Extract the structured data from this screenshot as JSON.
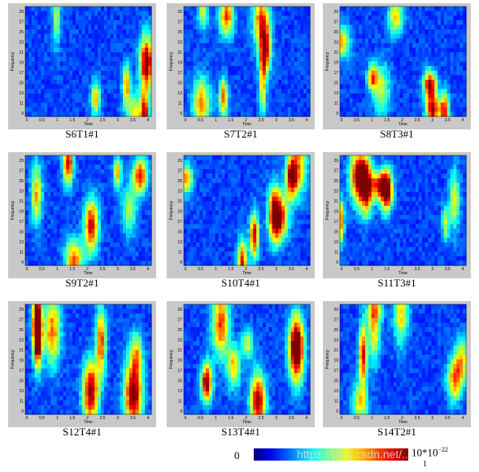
{
  "chart_data": {
    "type": "heatmap",
    "panels": [
      {
        "title": "S6T1#1"
      },
      {
        "title": "S7T2#1"
      },
      {
        "title": "S8T3#1"
      },
      {
        "title": "S9T2#1"
      },
      {
        "title": "S10T4#1"
      },
      {
        "title": "S11T3#1"
      },
      {
        "title": "S12T4#1"
      },
      {
        "title": "S13T4#1"
      },
      {
        "title": "S14T2#1"
      }
    ],
    "xlabel": "Time",
    "ylabel": "Frequency",
    "xticks": [
      "0",
      "0.5",
      "1",
      "1.5",
      "2",
      "2.5",
      "3",
      "3.5",
      "4"
    ],
    "yticks": [
      "29",
      "27",
      "25",
      "23",
      "21",
      "19",
      "17",
      "15",
      "13",
      "11",
      "9"
    ],
    "xlim": [
      0,
      4
    ],
    "ylim": [
      8,
      30
    ],
    "colormap": "jet",
    "colorbar": {
      "min_label": "0",
      "max_label": "10*10",
      "max_exponent": "−22",
      "sub_label": "1"
    }
  },
  "watermark": "https://blog.csdn.net/..."
}
